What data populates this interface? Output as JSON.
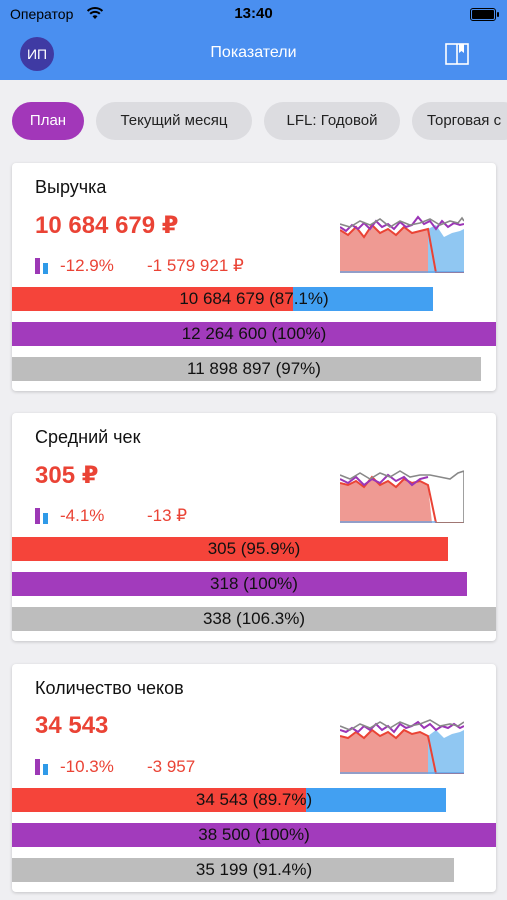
{
  "status": {
    "carrier": "Оператор",
    "time": "13:40"
  },
  "nav": {
    "avatar": "ИП",
    "title": "Показатели"
  },
  "chips": [
    "План",
    "Текущий месяц",
    "LFL: Годовой",
    "Торговая с"
  ],
  "colors": {
    "primary": "#4a8ff0",
    "accent": "#a237b9",
    "negative": "#ea4335",
    "plan_fill": "#42a0f2",
    "prev_fill": "#bdbdbd"
  },
  "cards": [
    {
      "title": "Выручка",
      "value": "10 684 679 ₽",
      "change_pct": "-12.9%",
      "change_abs": "-1 579 921 ₽",
      "bars": {
        "fact": {
          "label": "10 684 679  (87.1%)",
          "progress": 0.871
        },
        "plan": {
          "label": "12 264 600  (100%)",
          "progress": 1.0
        },
        "prev": {
          "label": "11 898 897  (97%)",
          "progress": 0.97
        }
      }
    },
    {
      "title": "Средний чек",
      "value": "305 ₽",
      "change_pct": "-4.1%",
      "change_abs": "-13 ₽",
      "bars": {
        "fact": {
          "label": "305  (95.9%)",
          "progress": 0.959
        },
        "plan": {
          "label": "318  (100%)",
          "progress": 1.0
        },
        "prev": {
          "label": "338  (106.3%)",
          "progress": 1.063
        }
      }
    },
    {
      "title": "Количество чеков",
      "value": "34 543",
      "change_pct": "-10.3%",
      "change_abs": "-3 957",
      "bars": {
        "fact": {
          "label": "34 543  (89.7%)",
          "progress": 0.897
        },
        "plan": {
          "label": "38 500  (100%)",
          "progress": 1.0
        },
        "prev": {
          "label": "35 199  (91.4%)",
          "progress": 0.914
        }
      }
    }
  ]
}
